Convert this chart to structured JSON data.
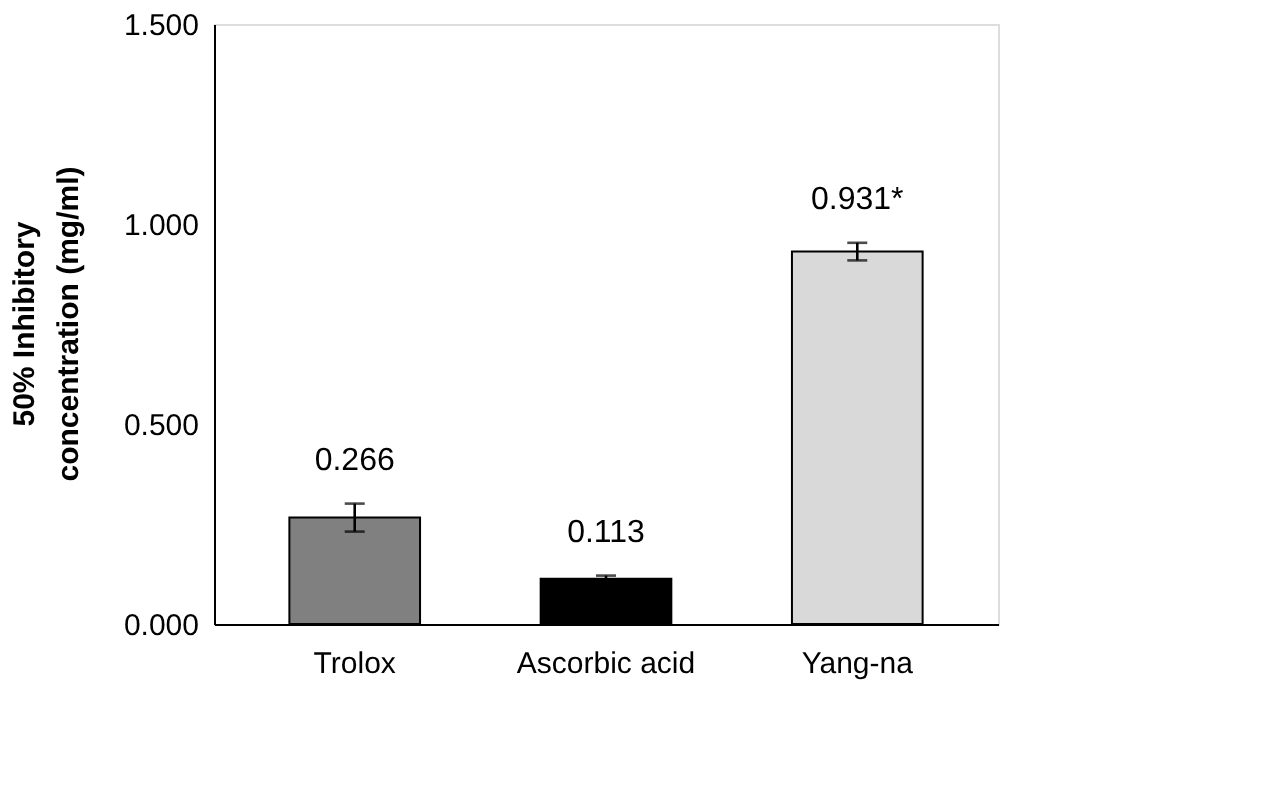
{
  "chart_data": {
    "type": "bar",
    "ylabel": "50% Inhibitory\nconcentration (mg/ml)",
    "categories": [
      "Trolox",
      "Ascorbic acid",
      "Yang-na"
    ],
    "values": [
      0.266,
      0.113,
      0.931
    ],
    "colors": [
      "#808080",
      "#000000",
      "#d9d9d9"
    ],
    "errors": [
      0.035,
      0.008,
      0.022
    ],
    "value_labels": [
      "0.266",
      "0.113",
      "0.931*"
    ],
    "ylim": [
      0,
      1.5
    ],
    "yticks": [
      {
        "value": 0,
        "label": "0.000"
      },
      {
        "value": 0.5,
        "label": "0.500"
      },
      {
        "value": 1.0,
        "label": "1.000"
      },
      {
        "value": 1.5,
        "label": "1.500"
      }
    ],
    "grid": false,
    "legend": false
  }
}
